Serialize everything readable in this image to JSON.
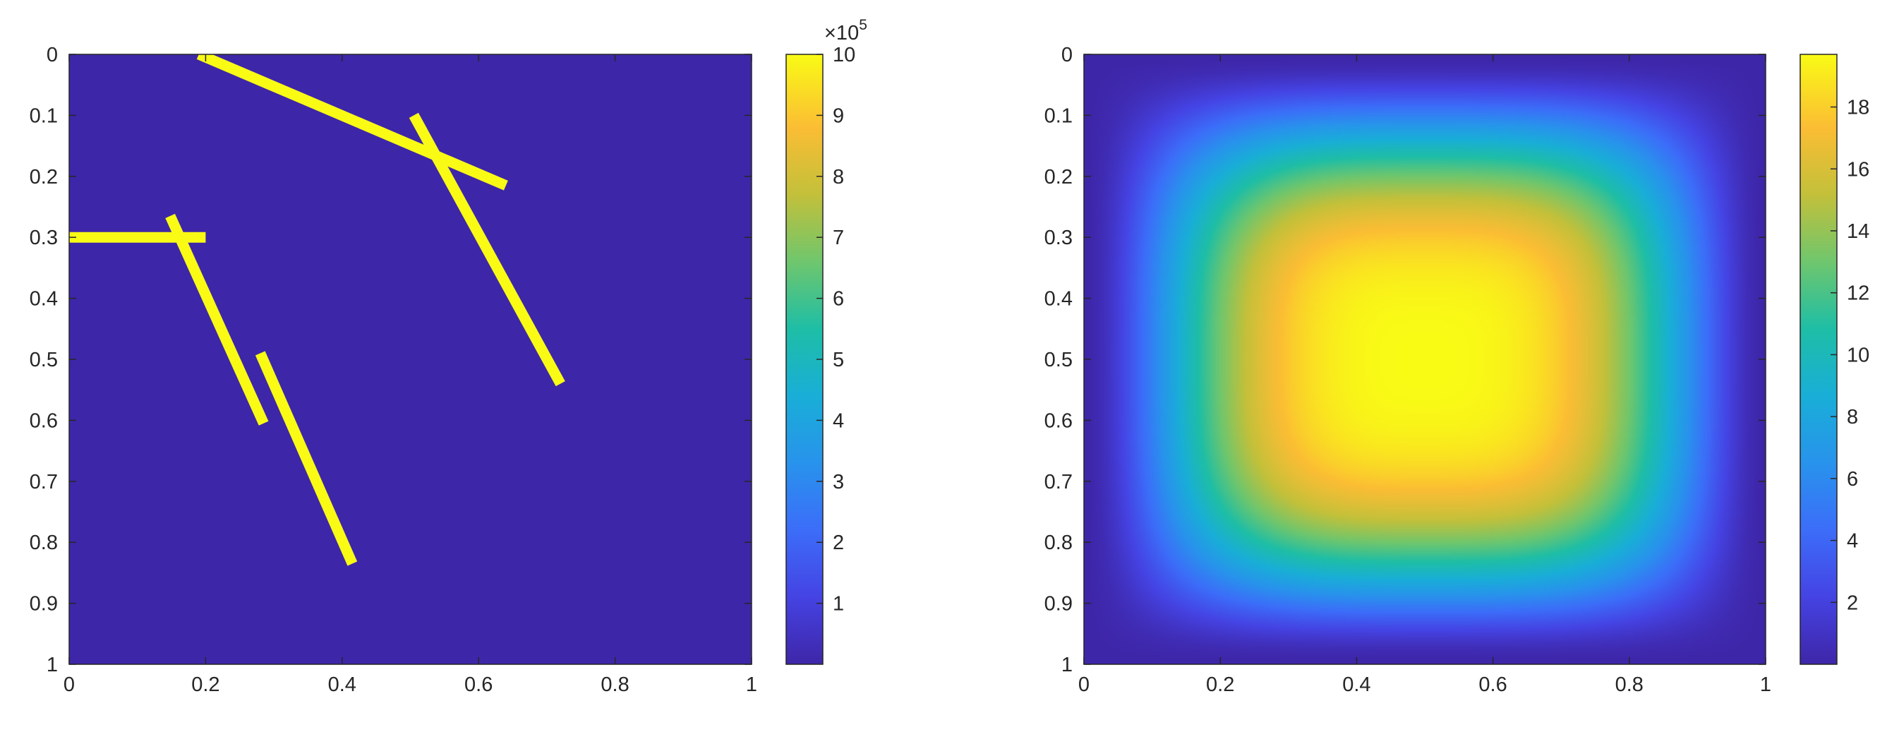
{
  "chart_data": [
    {
      "type": "heatmap",
      "title": "",
      "xlabel": "",
      "ylabel": "",
      "xlim": [
        0,
        1
      ],
      "ylim": [
        0,
        1
      ],
      "y_direction": "reversed",
      "x_ticks": [
        "0",
        "0.2",
        "0.4",
        "0.6",
        "0.8",
        "1"
      ],
      "x_tick_values": [
        0,
        0.2,
        0.4,
        0.6,
        0.8,
        1
      ],
      "y_ticks": [
        "0",
        "0.1",
        "0.2",
        "0.3",
        "0.4",
        "0.5",
        "0.6",
        "0.7",
        "0.8",
        "0.9",
        "1"
      ],
      "y_tick_values": [
        0,
        0.1,
        0.2,
        0.3,
        0.4,
        0.5,
        0.6,
        0.7,
        0.8,
        0.9,
        1
      ],
      "background_value": 0,
      "fracture_value": 1000000,
      "fractures": [
        {
          "x1": 0.19,
          "y1": 0.0,
          "x2": 0.64,
          "y2": 0.215
        },
        {
          "x1": 0.505,
          "y1": 0.1,
          "x2": 0.72,
          "y2": 0.54
        },
        {
          "x1": 0.0,
          "y1": 0.3,
          "x2": 0.2,
          "y2": 0.3
        },
        {
          "x1": 0.148,
          "y1": 0.265,
          "x2": 0.285,
          "y2": 0.605
        },
        {
          "x1": 0.28,
          "y1": 0.49,
          "x2": 0.415,
          "y2": 0.835
        }
      ],
      "colorbar": {
        "min": 0,
        "max": 1000000,
        "tick_labels": [
          "1",
          "2",
          "3",
          "4",
          "5",
          "6",
          "7",
          "8",
          "9",
          "10"
        ],
        "tick_values": [
          1,
          2,
          3,
          4,
          5,
          6,
          7,
          8,
          9,
          10
        ],
        "tick_max": 10,
        "exponent_label": "×10",
        "exponent": "5"
      },
      "colormap": "parula",
      "grid": false
    },
    {
      "type": "heatmap",
      "title": "",
      "xlabel": "",
      "ylabel": "",
      "xlim": [
        0,
        1
      ],
      "ylim": [
        0,
        1
      ],
      "y_direction": "reversed",
      "x_ticks": [
        "0",
        "0.2",
        "0.4",
        "0.6",
        "0.8",
        "1"
      ],
      "x_tick_values": [
        0,
        0.2,
        0.4,
        0.6,
        0.8,
        1
      ],
      "y_ticks": [
        "0",
        "0.1",
        "0.2",
        "0.3",
        "0.4",
        "0.5",
        "0.6",
        "0.7",
        "0.8",
        "0.9",
        "1"
      ],
      "y_tick_values": [
        0,
        0.1,
        0.2,
        0.3,
        0.4,
        0.5,
        0.6,
        0.7,
        0.8,
        0.9,
        1
      ],
      "field": "smooth peak centered near (0.5, 0.5), approx 19.7 at center, approx 0 at boundary",
      "field_max": 19.7,
      "peak_center": [
        0.5,
        0.5
      ],
      "colorbar": {
        "min": 0,
        "max": 19.7,
        "tick_labels": [
          "2",
          "4",
          "6",
          "8",
          "10",
          "12",
          "14",
          "16",
          "18"
        ],
        "tick_values": [
          2,
          4,
          6,
          8,
          10,
          12,
          14,
          16,
          18
        ]
      },
      "colormap": "parula",
      "grid": false
    }
  ]
}
